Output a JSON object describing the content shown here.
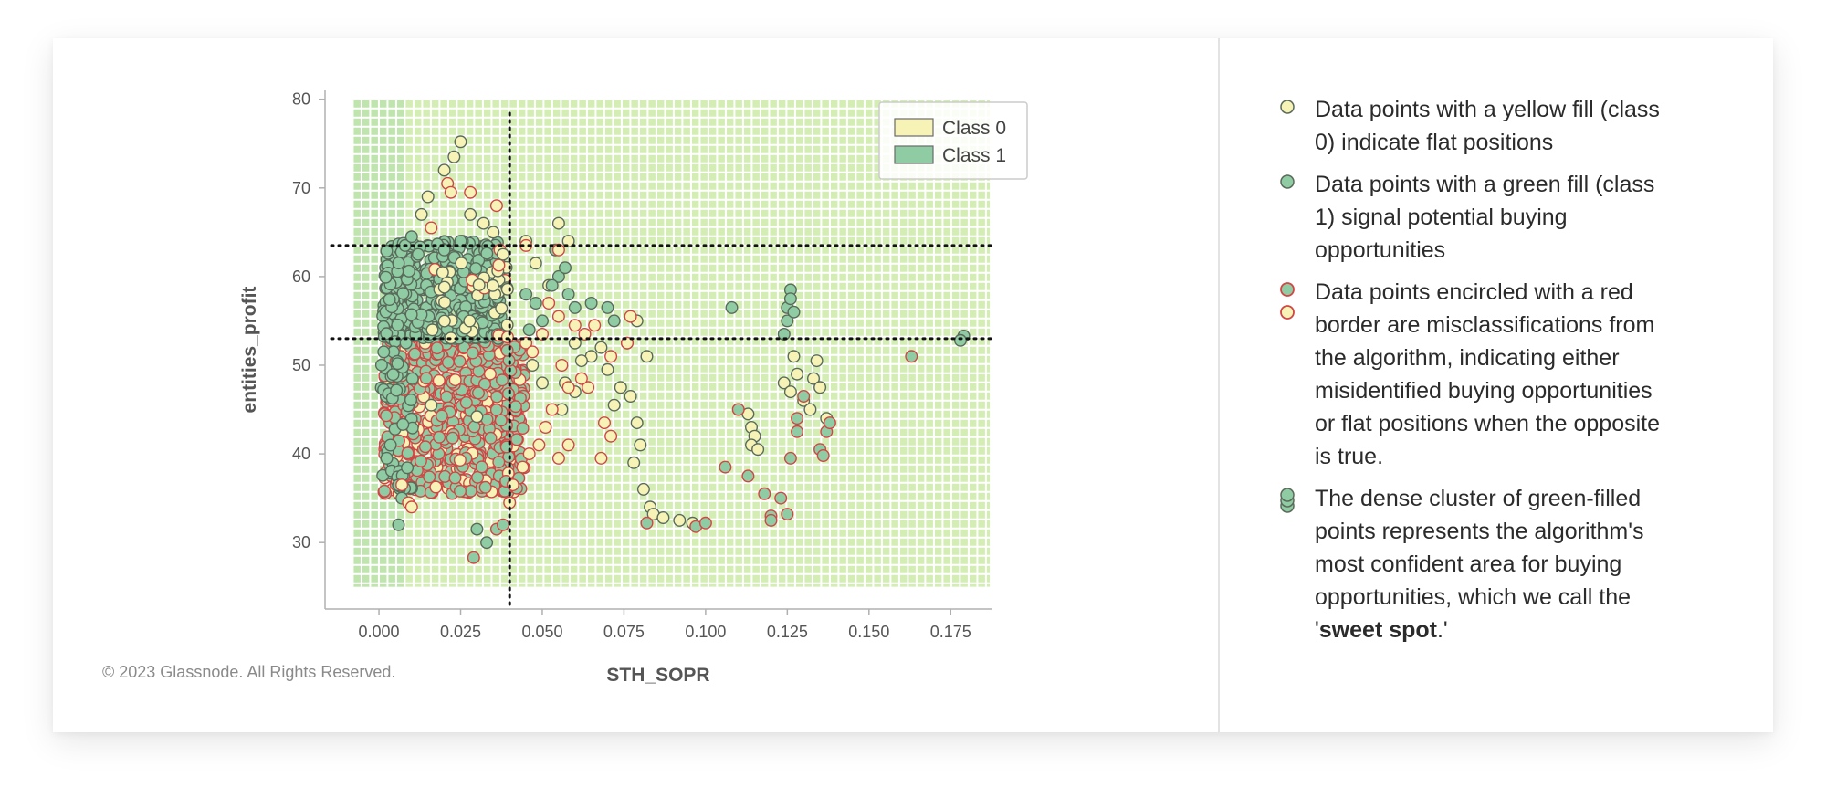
{
  "copyright": "© 2023 Glassnode. All Rights Reserved.",
  "chart_data": {
    "type": "scatter",
    "title": "",
    "xlabel": "STH_SOPR",
    "ylabel": "entities_profit",
    "xlim": [
      -0.0165,
      0.1875
    ],
    "ylim": [
      22.5,
      81
    ],
    "xticks": [
      "0.000",
      "0.025",
      "0.050",
      "0.075",
      "0.100",
      "0.125",
      "0.150",
      "0.175"
    ],
    "yticks": [
      "30",
      "40",
      "50",
      "60",
      "70",
      "80"
    ],
    "legend": {
      "placement": "top-right",
      "entries": [
        "Class 0",
        "Class 1"
      ]
    },
    "thresholds": {
      "x": 0.04,
      "y": [
        53,
        63.5
      ]
    },
    "decision_region_x": [
      -0.008,
      0.187
    ],
    "decision_region_y": [
      25,
      80
    ],
    "colors": {
      "class0": "#f7f3b6",
      "class1": "#8fcca3",
      "region0": "#d4edb5",
      "region1": "#bfe4ad",
      "misclassified": "#d24545",
      "border": "#5a6a5a"
    },
    "series": [
      {
        "name": "Class 0",
        "points": [
          [
            0.016,
            45.5
          ],
          [
            0.03,
            44.2
          ],
          [
            0.045,
            64
          ],
          [
            0.048,
            61.5
          ],
          [
            0.052,
            59
          ],
          [
            0.055,
            66
          ],
          [
            0.058,
            64
          ],
          [
            0.06,
            52.5
          ],
          [
            0.047,
            50
          ],
          [
            0.05,
            48
          ],
          [
            0.056,
            45
          ],
          [
            0.06,
            47
          ],
          [
            0.065,
            51
          ],
          [
            0.07,
            49.5
          ],
          [
            0.074,
            47.5
          ],
          [
            0.077,
            46.5
          ],
          [
            0.079,
            43.5
          ],
          [
            0.08,
            41
          ],
          [
            0.078,
            39
          ],
          [
            0.081,
            36
          ],
          [
            0.083,
            34
          ],
          [
            0.084,
            33.2
          ],
          [
            0.087,
            32.8
          ],
          [
            0.092,
            32.5
          ],
          [
            0.096,
            32.2
          ],
          [
            0.082,
            51
          ],
          [
            0.076,
            52.5
          ],
          [
            0.079,
            55
          ],
          [
            0.113,
            44.5
          ],
          [
            0.114,
            43
          ],
          [
            0.115,
            42
          ],
          [
            0.114,
            41
          ],
          [
            0.116,
            40.5
          ],
          [
            0.124,
            48
          ],
          [
            0.126,
            47
          ],
          [
            0.127,
            51
          ],
          [
            0.128,
            49
          ],
          [
            0.13,
            46
          ],
          [
            0.132,
            45
          ],
          [
            0.133,
            48.5
          ],
          [
            0.134,
            50.5
          ],
          [
            0.135,
            47.5
          ],
          [
            0.137,
            44
          ],
          [
            0.072,
            45.5
          ],
          [
            0.068,
            52
          ],
          [
            0.057,
            48
          ],
          [
            0.062,
            50.5
          ],
          [
            0.015,
            69
          ],
          [
            0.013,
            67
          ],
          [
            0.02,
            72
          ],
          [
            0.023,
            73.5
          ],
          [
            0.025,
            75.2
          ],
          [
            0.028,
            67
          ],
          [
            0.032,
            66
          ],
          [
            0.035,
            65
          ],
          [
            0.038,
            62.5
          ]
        ]
      },
      {
        "name": "Class 1",
        "points": [
          [
            0.108,
            56.5
          ],
          [
            0.125,
            56.5
          ],
          [
            0.125,
            55
          ],
          [
            0.126,
            58.5
          ],
          [
            0.126,
            57.5
          ],
          [
            0.127,
            56
          ],
          [
            0.124,
            53.5
          ],
          [
            0.07,
            56.5
          ],
          [
            0.072,
            55
          ],
          [
            0.065,
            57
          ],
          [
            0.054,
            63
          ],
          [
            0.055,
            60
          ],
          [
            0.058,
            58
          ],
          [
            0.06,
            56.5
          ],
          [
            0.045,
            58
          ],
          [
            0.048,
            57
          ],
          [
            0.05,
            55
          ],
          [
            0.046,
            54
          ],
          [
            0.053,
            59
          ],
          [
            0.057,
            61
          ],
          [
            0.006,
            32
          ],
          [
            0.007,
            35
          ],
          [
            0.03,
            31.5
          ],
          [
            0.033,
            30
          ],
          [
            0.008,
            63.5
          ],
          [
            0.01,
            64.5
          ],
          [
            0.012,
            62.5
          ],
          [
            0.02,
            63
          ],
          [
            0.025,
            64
          ],
          [
            0.179,
            53.3
          ],
          [
            0.178,
            52.8
          ]
        ]
      },
      {
        "name": "misclassified",
        "points": [
          [
            0.106,
            38.5
          ],
          [
            0.11,
            45
          ],
          [
            0.113,
            37.5
          ],
          [
            0.118,
            35.5
          ],
          [
            0.12,
            33
          ],
          [
            0.12,
            32.5
          ],
          [
            0.123,
            35
          ],
          [
            0.125,
            33.2
          ],
          [
            0.126,
            39.5
          ],
          [
            0.128,
            44
          ],
          [
            0.13,
            46.5
          ],
          [
            0.128,
            42.5
          ],
          [
            0.135,
            40.5
          ],
          [
            0.136,
            39.8
          ],
          [
            0.137,
            42.5
          ],
          [
            0.138,
            43.5
          ],
          [
            0.163,
            51
          ],
          [
            0.071,
            42
          ],
          [
            0.069,
            43.5
          ],
          [
            0.068,
            39.5
          ],
          [
            0.064,
            47.5
          ],
          [
            0.062,
            48.5
          ],
          [
            0.071,
            51
          ],
          [
            0.077,
            55.5
          ],
          [
            0.076,
            52.5
          ],
          [
            0.082,
            32.2
          ],
          [
            0.097,
            31.8
          ],
          [
            0.1,
            32.2
          ],
          [
            0.029,
            28.3
          ],
          [
            0.036,
            31.5
          ],
          [
            0.038,
            32
          ],
          [
            0.04,
            34.5
          ],
          [
            0.041,
            36.5
          ],
          [
            0.021,
            70.5
          ],
          [
            0.022,
            69.5
          ],
          [
            0.028,
            69.5
          ],
          [
            0.036,
            68
          ],
          [
            0.016,
            65.5
          ],
          [
            0.045,
            63.5
          ],
          [
            0.055,
            63
          ],
          [
            0.052,
            57
          ],
          [
            0.055,
            55.5
          ],
          [
            0.05,
            53.5
          ],
          [
            0.045,
            52.5
          ],
          [
            0.047,
            51.5
          ],
          [
            0.06,
            54.5
          ],
          [
            0.063,
            53.5
          ],
          [
            0.066,
            54.5
          ],
          [
            0.056,
            50
          ],
          [
            0.058,
            47.5
          ],
          [
            0.053,
            45
          ],
          [
            0.051,
            43
          ],
          [
            0.049,
            41
          ],
          [
            0.046,
            40
          ],
          [
            0.044,
            38.5
          ],
          [
            0.058,
            41
          ],
          [
            0.055,
            39.5
          ],
          [
            0.009,
            34.5
          ],
          [
            0.01,
            34
          ],
          [
            0.007,
            36.5
          ]
        ]
      }
    ]
  },
  "legend_items": [
    {
      "text": "Data points with a yellow fill (class 0) indicate flat positions"
    },
    {
      "text": "Data points with a green fill (class 1) signal potential buying opportunities"
    },
    {
      "text": "Data points encircled with a red border are misclassifications from the algorithm, indicating either misidentified buying opportunities or flat positions when the opposite is true."
    },
    {
      "text_before": "The dense cluster of green-filled points represents the algorithm's most confident area for buying opportunities, which we call the '",
      "text_bold": "sweet spot",
      "text_after": ".'"
    }
  ]
}
